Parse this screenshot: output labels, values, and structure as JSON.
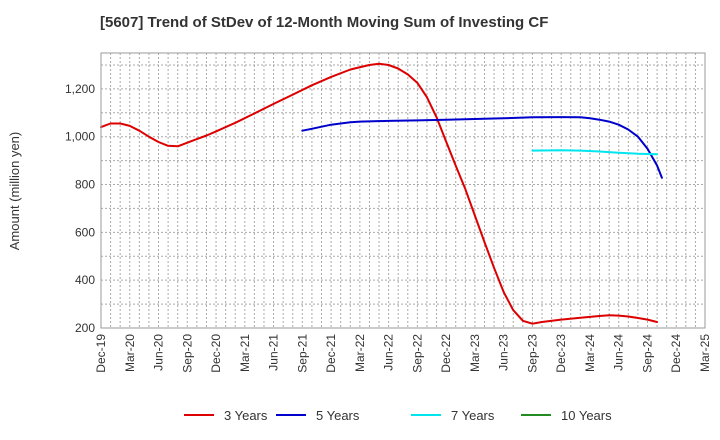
{
  "chart_data": {
    "type": "line",
    "title": "[5607]  Trend of StDev of 12-Month Moving Sum of Investing CF",
    "ylabel": "Amount (million yen)",
    "xlabel": "",
    "ylim": [
      200,
      1350
    ],
    "yticks": [
      200,
      400,
      600,
      800,
      1000,
      1200
    ],
    "ytick_labels": [
      "200",
      "400",
      "600",
      "800",
      "1,000",
      "1,200"
    ],
    "x_tick_labels": [
      "Dec-19",
      "Mar-20",
      "Jun-20",
      "Sep-20",
      "Dec-20",
      "Mar-21",
      "Jun-21",
      "Sep-21",
      "Dec-21",
      "Mar-22",
      "Jun-22",
      "Sep-22",
      "Dec-22",
      "Mar-23",
      "Jun-23",
      "Sep-23",
      "Dec-23",
      "Mar-24",
      "Jun-24",
      "Sep-24",
      "Dec-24",
      "Mar-25"
    ],
    "x_tick_count": 22,
    "grid": true,
    "legend_position": "bottom",
    "series": [
      {
        "name": "3 Years",
        "color": "#dd0000",
        "points": [
          [
            0,
            1040
          ],
          [
            0.33,
            1055
          ],
          [
            0.67,
            1055
          ],
          [
            1,
            1045
          ],
          [
            1.33,
            1025
          ],
          [
            1.67,
            1000
          ],
          [
            2,
            978
          ],
          [
            2.33,
            962
          ],
          [
            2.67,
            960
          ],
          [
            3,
            975
          ],
          [
            3.33,
            990
          ],
          [
            3.67,
            1005
          ],
          [
            4,
            1022
          ],
          [
            4.67,
            1058
          ],
          [
            5.33,
            1097
          ],
          [
            6,
            1137
          ],
          [
            6.67,
            1176
          ],
          [
            7.33,
            1215
          ],
          [
            8,
            1250
          ],
          [
            8.67,
            1281
          ],
          [
            9.33,
            1300
          ],
          [
            9.67,
            1305
          ],
          [
            10,
            1300
          ],
          [
            10.33,
            1285
          ],
          [
            10.67,
            1260
          ],
          [
            11,
            1225
          ],
          [
            11.33,
            1165
          ],
          [
            11.67,
            1080
          ],
          [
            12,
            980
          ],
          [
            12.33,
            880
          ],
          [
            12.67,
            780
          ],
          [
            13,
            670
          ],
          [
            13.33,
            560
          ],
          [
            13.67,
            450
          ],
          [
            14,
            350
          ],
          [
            14.33,
            275
          ],
          [
            14.67,
            230
          ],
          [
            15,
            218
          ],
          [
            15.33,
            225
          ],
          [
            16,
            235
          ],
          [
            16.67,
            243
          ],
          [
            17.33,
            250
          ],
          [
            17.67,
            253
          ],
          [
            18,
            252
          ],
          [
            18.33,
            248
          ],
          [
            18.67,
            242
          ],
          [
            19,
            235
          ],
          [
            19.33,
            225
          ]
        ]
      },
      {
        "name": "5 Years",
        "color": "#0000cc",
        "points": [
          [
            7,
            1025
          ],
          [
            7.33,
            1033
          ],
          [
            7.67,
            1042
          ],
          [
            8,
            1050
          ],
          [
            8.33,
            1055
          ],
          [
            8.67,
            1060
          ],
          [
            9,
            1063
          ],
          [
            10,
            1066
          ],
          [
            11,
            1068
          ],
          [
            12,
            1071
          ],
          [
            13,
            1074
          ],
          [
            14,
            1077
          ],
          [
            15,
            1081
          ],
          [
            16,
            1082
          ],
          [
            16.67,
            1081
          ],
          [
            17,
            1077
          ],
          [
            17.33,
            1071
          ],
          [
            17.67,
            1063
          ],
          [
            18,
            1050
          ],
          [
            18.33,
            1030
          ],
          [
            18.67,
            1000
          ],
          [
            19,
            950
          ],
          [
            19.33,
            880
          ],
          [
            19.5,
            828
          ]
        ]
      },
      {
        "name": "7 Years",
        "color": "#00e5ee",
        "points": [
          [
            15,
            942
          ],
          [
            16,
            943
          ],
          [
            16.67,
            942
          ],
          [
            17.33,
            938
          ],
          [
            18,
            933
          ],
          [
            18.67,
            929
          ],
          [
            19.33,
            927
          ]
        ]
      },
      {
        "name": "10 Years",
        "color": "#228b22",
        "points": []
      }
    ]
  }
}
